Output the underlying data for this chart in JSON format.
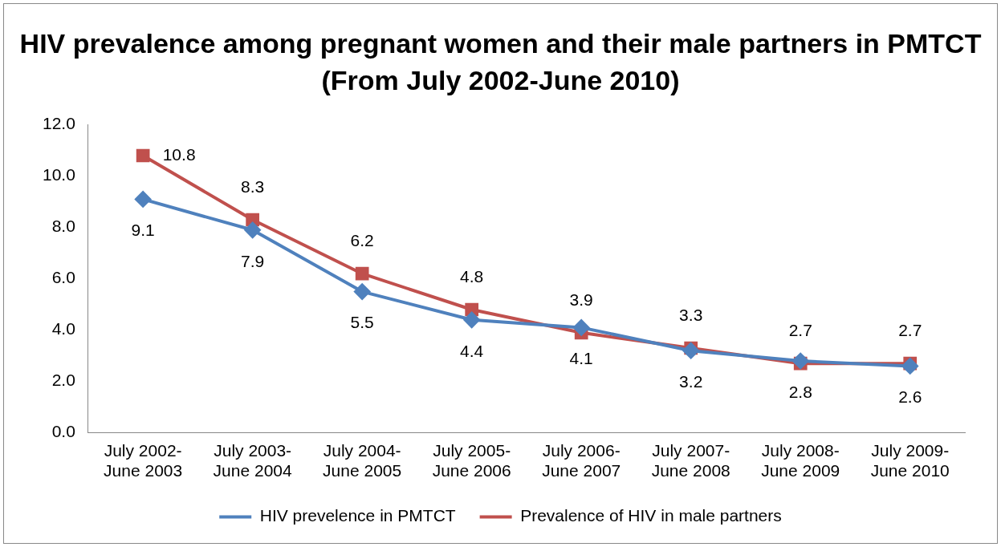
{
  "chart_data": {
    "type": "line",
    "title": "HIV prevalence among pregnant women and their male partners in PMTCT      (From July 2002-June 2010)",
    "categories": [
      "July 2002-June 2003",
      "July 2003-June 2004",
      "July 2004-June 2005",
      "July 2005-June 2006",
      "July 2006-June 2007",
      "July 2007-June 2008",
      "July 2008-June 2009",
      "July 2009-June 2010"
    ],
    "series": [
      {
        "name": "HIV prevelence in PMTCT",
        "color": "#4f81bd",
        "marker": "diamond",
        "values": [
          9.1,
          7.9,
          5.5,
          4.4,
          4.1,
          3.2,
          2.8,
          2.6
        ]
      },
      {
        "name": "Prevalence of HIV in male partners",
        "color": "#c0504d",
        "marker": "square",
        "values": [
          10.8,
          8.3,
          6.2,
          4.8,
          3.9,
          3.3,
          2.7,
          2.7
        ]
      }
    ],
    "ylim": [
      0,
      12
    ],
    "yticks": [
      {
        "value": 0,
        "label": "0.0"
      },
      {
        "value": 2,
        "label": "2.0"
      },
      {
        "value": 4,
        "label": "4.0"
      },
      {
        "value": 6,
        "label": "6.0"
      },
      {
        "value": 8,
        "label": "8.0"
      },
      {
        "value": 10,
        "label": "10.0"
      },
      {
        "value": 12,
        "label": "12.0"
      }
    ],
    "grid": false,
    "legend": "bottom",
    "data_labels": true,
    "line_style": "solid"
  }
}
